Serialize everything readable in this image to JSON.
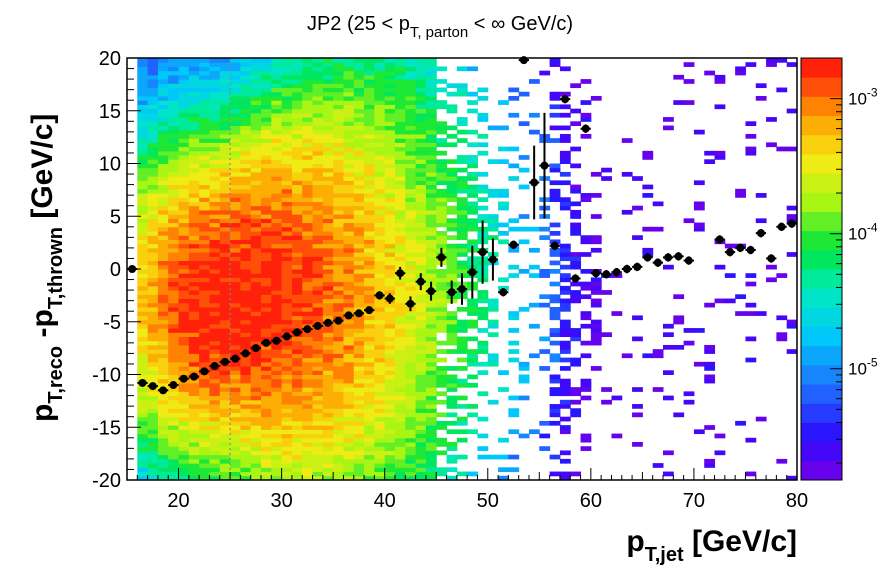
{
  "chart_data": {
    "type": "heatmap",
    "title": {
      "main": "JP2 (25 < p",
      "sub1": "T, parton",
      "rest": " < ∞ GeV/c)"
    },
    "xlabel": {
      "main": "p",
      "sub": "T,jet",
      "units": "  [GeV/c]"
    },
    "ylabel": {
      "main": "p",
      "sub1": "T,reco",
      "mid": " -p",
      "sub2": "T,thrown",
      "units": "  [GeV/c]"
    },
    "xlim": [
      15,
      80
    ],
    "ylim": [
      -20,
      20
    ],
    "x_ticks": [
      20,
      30,
      40,
      50,
      60,
      70,
      80
    ],
    "y_ticks": [
      -20,
      -15,
      -10,
      -5,
      0,
      5,
      10,
      15,
      20
    ],
    "colorbar": {
      "scale": "log",
      "range": [
        1.5e-06,
        0.002
      ],
      "tick_labels": [
        "10",
        "10",
        "10"
      ],
      "tick_exponents": [
        "-5",
        "-4",
        "-3"
      ],
      "tick_values": [
        1e-05,
        0.0001,
        0.001
      ]
    },
    "vertical_reference_line": {
      "x": 25,
      "style": "dotted",
      "color": "#888888"
    },
    "heatmap_density_peak": {
      "x": 24,
      "y": -3
    },
    "profile_points": [
      {
        "x": 15.5,
        "y": 0.0,
        "err": 0.3
      },
      {
        "x": 16.5,
        "y": -10.8,
        "err": 0.3
      },
      {
        "x": 17.5,
        "y": -11.1,
        "err": 0.3
      },
      {
        "x": 18.5,
        "y": -11.5,
        "err": 0.3
      },
      {
        "x": 19.5,
        "y": -11.0,
        "err": 0.3
      },
      {
        "x": 20.5,
        "y": -10.4,
        "err": 0.3
      },
      {
        "x": 21.5,
        "y": -10.2,
        "err": 0.3
      },
      {
        "x": 22.5,
        "y": -9.7,
        "err": 0.3
      },
      {
        "x": 23.5,
        "y": -9.2,
        "err": 0.3
      },
      {
        "x": 24.5,
        "y": -8.8,
        "err": 0.3
      },
      {
        "x": 25.5,
        "y": -8.5,
        "err": 0.3
      },
      {
        "x": 26.5,
        "y": -8.0,
        "err": 0.3
      },
      {
        "x": 27.5,
        "y": -7.5,
        "err": 0.3
      },
      {
        "x": 28.5,
        "y": -7.0,
        "err": 0.3
      },
      {
        "x": 29.5,
        "y": -6.8,
        "err": 0.3
      },
      {
        "x": 30.5,
        "y": -6.4,
        "err": 0.3
      },
      {
        "x": 31.5,
        "y": -6.0,
        "err": 0.3
      },
      {
        "x": 32.5,
        "y": -5.7,
        "err": 0.3
      },
      {
        "x": 33.5,
        "y": -5.4,
        "err": 0.3
      },
      {
        "x": 34.5,
        "y": -5.1,
        "err": 0.3
      },
      {
        "x": 35.5,
        "y": -4.9,
        "err": 0.3
      },
      {
        "x": 36.5,
        "y": -4.4,
        "err": 0.3
      },
      {
        "x": 37.5,
        "y": -4.2,
        "err": 0.3
      },
      {
        "x": 38.5,
        "y": -3.9,
        "err": 0.3
      },
      {
        "x": 39.5,
        "y": -2.5,
        "err": 0.4
      },
      {
        "x": 40.5,
        "y": -2.8,
        "err": 0.5
      },
      {
        "x": 41.5,
        "y": -0.4,
        "err": 0.6
      },
      {
        "x": 42.5,
        "y": -3.3,
        "err": 0.7
      },
      {
        "x": 43.5,
        "y": -1.2,
        "err": 0.8
      },
      {
        "x": 44.5,
        "y": -2.1,
        "err": 0.9
      },
      {
        "x": 45.5,
        "y": 1.1,
        "err": 0.9
      },
      {
        "x": 46.5,
        "y": -2.2,
        "err": 1.1
      },
      {
        "x": 47.5,
        "y": -1.9,
        "err": 1.5
      },
      {
        "x": 48.5,
        "y": -0.3,
        "err": 2.5
      },
      {
        "x": 49.5,
        "y": 1.6,
        "err": 3.0
      },
      {
        "x": 50.5,
        "y": 0.9,
        "err": 2.0
      },
      {
        "x": 51.5,
        "y": -2.2,
        "err": 0.4
      },
      {
        "x": 52.5,
        "y": 2.3,
        "err": 0.4
      },
      {
        "x": 53.5,
        "y": 19.8,
        "err": 0.3
      },
      {
        "x": 54.5,
        "y": 8.2,
        "err": 3.5
      },
      {
        "x": 55.5,
        "y": 9.8,
        "err": 5.0
      },
      {
        "x": 56.5,
        "y": 2.2,
        "err": 0.4
      },
      {
        "x": 57.5,
        "y": 16.1,
        "err": 0.4
      },
      {
        "x": 58.5,
        "y": -0.9,
        "err": 0.4
      },
      {
        "x": 59.5,
        "y": 13.3,
        "err": 0.4
      },
      {
        "x": 60.5,
        "y": -0.4,
        "err": 0.4
      },
      {
        "x": 61.5,
        "y": -0.5,
        "err": 0.4
      },
      {
        "x": 62.5,
        "y": -0.3,
        "err": 0.4
      },
      {
        "x": 63.5,
        "y": 0.0,
        "err": 0.4
      },
      {
        "x": 64.5,
        "y": 0.2,
        "err": 0.4
      },
      {
        "x": 65.5,
        "y": 1.1,
        "err": 0.4
      },
      {
        "x": 66.5,
        "y": 0.6,
        "err": 0.4
      },
      {
        "x": 67.5,
        "y": 1.1,
        "err": 0.4
      },
      {
        "x": 68.5,
        "y": 1.2,
        "err": 0.4
      },
      {
        "x": 69.5,
        "y": 0.8,
        "err": 0.4
      },
      {
        "x": 72.5,
        "y": 2.8,
        "err": 0.4
      },
      {
        "x": 73.5,
        "y": 1.6,
        "err": 0.4
      },
      {
        "x": 74.5,
        "y": 2.0,
        "err": 0.4
      },
      {
        "x": 75.5,
        "y": 1.8,
        "err": 0.4
      },
      {
        "x": 76.5,
        "y": 3.4,
        "err": 0.4
      },
      {
        "x": 77.5,
        "y": 1.0,
        "err": 0.4
      },
      {
        "x": 78.5,
        "y": 4.0,
        "err": 0.4
      },
      {
        "x": 79.5,
        "y": 4.3,
        "err": 0.4
      }
    ]
  }
}
